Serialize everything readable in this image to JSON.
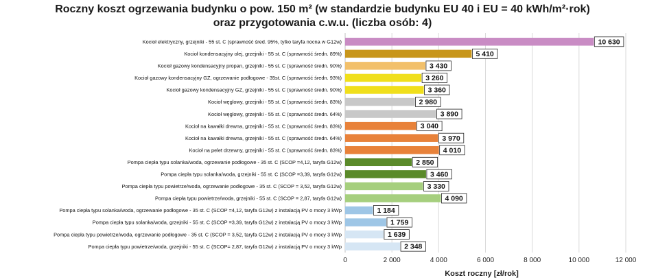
{
  "chart_data": {
    "type": "bar",
    "orientation": "horizontal",
    "title_line1": "Roczny koszt ogrzewania budynku  o pow. 150 m² (w standardzie budynku EU 40 i EU = 40 kWh/m²·rok)",
    "title_line2": "oraz przygotowania c.w.u. (liczba osób: 4)",
    "xlabel": "Koszt roczny [zł/rok]",
    "xlim": [
      0,
      12000
    ],
    "xticks": [
      "0",
      "2 000",
      "4 000",
      "6 000",
      "8 000",
      "10 000",
      "12 000"
    ],
    "grid": "vertical",
    "categories": [
      "Kocioł elektryczny, grzejniki - 55 st. C (sprawność śred. 95%, tylko taryfa nocna w G12w)",
      "Kocioł kondensacyjny olej, grzejniki - 55 st. C (sprawność średn. 89%)",
      "Kocioł gazowy kondensacyjny propan, grzejniki - 55 st. C (sprawność średn. 90%)",
      "Kocioł gazowy kondensacyjny GZ, ogrzewanie podłogowe - 35st. C (sprawność średn. 93%)",
      "Kocioł gazowy kondensacyjny GZ, grzejniki - 55 st. C (sprawność średn. 90%)",
      "Kocioł węglowy, grzejniki - 55 st. C (sprawność średn. 83%)",
      "Kocioł węglowy, grzejniki - 55 st. C (sprawność średn. 64%)",
      "Kocioł na kawałki drewna, grzejniki - 55 st. C (sprawność średn. 83%)",
      "Kocioł na kawałki drewna, grzejniki - 55 st. C (sprawność średn. 64%)",
      "Kocioł na pelet drzewny, grzejniki - 55 st. C (sprawność średn. 83%)",
      "Pompa ciepła typu solanka/woda, ogrzewanie podłogowe - 35 st. C (SCOP =4,12, taryfa G12w)",
      "Pompa ciepła typu solanka/woda, grzejniki - 55 st. C (SCOP =3,39, taryfa G12w)",
      "Pompa ciepła typu powietrze/woda, ogrzewanie podłogowe - 35 st. C (SCOP = 3,52, taryfa G12w)",
      "Pompa ciepła typu powietrze/woda, grzejniki - 55 st. C (SCOP = 2,87, taryfa G12w)",
      "Pompa ciepła typu solanka/woda, ogrzewanie podłogowe - 35 st. C (SCOP =4,12, taryfa G12w) z instalacją PV o mocy 3 kWp",
      "Pompa ciepła typu solanka/woda, grzejniki - 55 st. C (SCOP =3,39, taryfa G12w) z instalacją PV o mocy 3 kWp",
      "Pompa ciepła typu powietrze/woda, ogrzewanie podłogowe - 35 st. C (SCOP = 3,52, taryfa G12w) z instalacją PV o mocy 3 kWp",
      "Pompa ciepła typu powietrze/woda, grzejniki - 55 st. C (SCOP= 2,87, taryfa G12w) z instalacją PV o mocy 3 kWp"
    ],
    "values": [
      10630,
      5410,
      3430,
      3260,
      3360,
      2980,
      3890,
      3040,
      3970,
      4010,
      2850,
      3460,
      3330,
      4090,
      1184,
      1759,
      1639,
      2348
    ],
    "value_labels": [
      "10 630",
      "5 410",
      "3 430",
      "3 260",
      "3 360",
      "2 980",
      "3 890",
      "3 040",
      "3 970",
      "4 010",
      "2 850",
      "3 460",
      "3 330",
      "4 090",
      "1 184",
      "1 759",
      "1 639",
      "2 348"
    ],
    "colors": [
      "#c98cc4",
      "#c8961a",
      "#f2c06a",
      "#f0df1c",
      "#f0df1c",
      "#c8c8c8",
      "#c8c8c8",
      "#e8823a",
      "#e8823a",
      "#e8823a",
      "#5a8a2a",
      "#5a8a2a",
      "#a6cf7e",
      "#a6cf7e",
      "#9ec6e6",
      "#9ec6e6",
      "#d6e6f4",
      "#d6e6f4"
    ]
  }
}
